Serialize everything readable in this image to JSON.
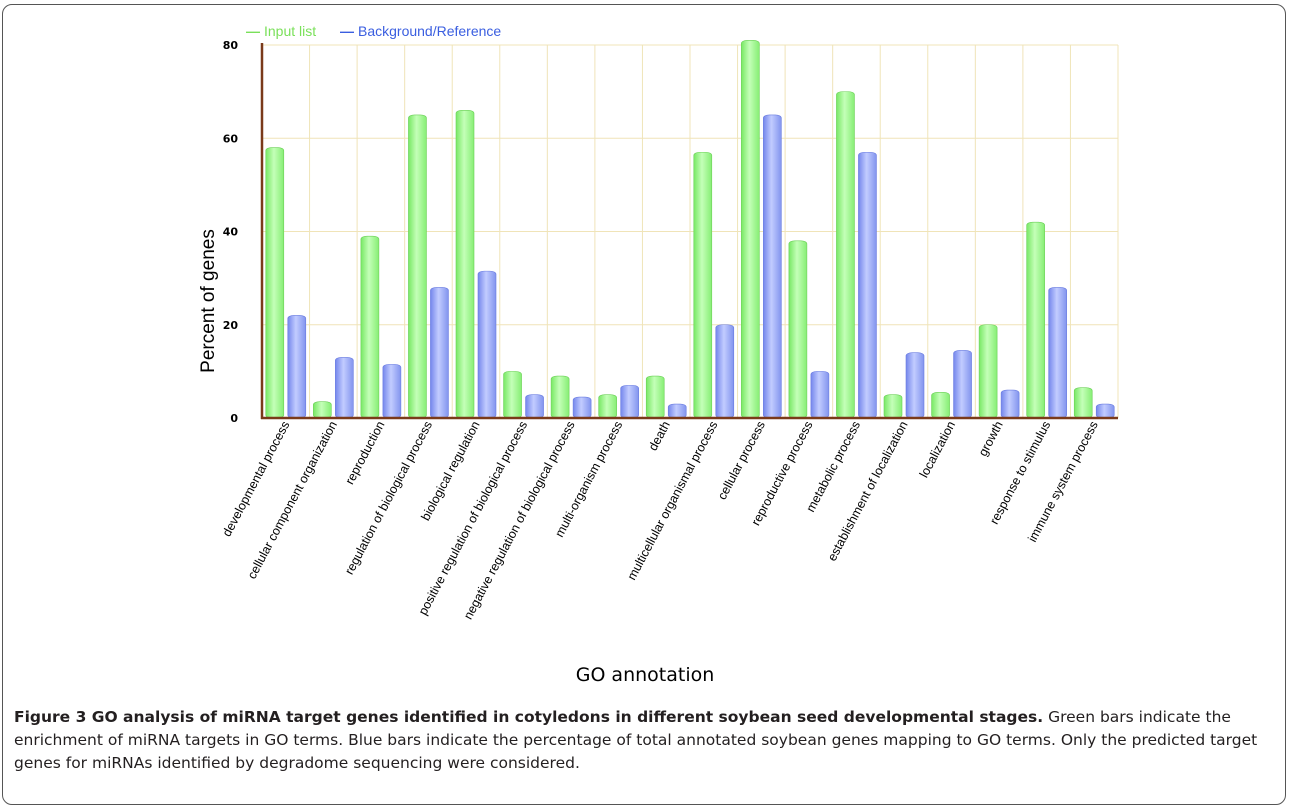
{
  "chart_data": {
    "type": "bar",
    "title": "",
    "xlabel": "GO annotation",
    "ylabel": "Percent of genes",
    "ylim": [
      0,
      80
    ],
    "yticks": [
      0,
      20,
      40,
      60,
      80
    ],
    "grid": true,
    "legend_position": "top-left",
    "categories": [
      "developmental process",
      "cellular component organization",
      "reproduction",
      "regulation of biological process",
      "biological regulation",
      "positive regulation of biological process",
      "negative regulation of biological process",
      "multi-organism process",
      "death",
      "multicellular organismal process",
      "cellular process",
      "reproductive process",
      "metabolic process",
      "establishment of localization",
      "localization",
      "growth",
      "response to stimulus",
      "immune system process"
    ],
    "series": [
      {
        "name": "Input list",
        "color": "#90f080",
        "values": [
          58,
          3.5,
          39,
          65,
          66,
          10,
          9,
          5,
          9,
          57,
          81,
          38,
          70,
          5,
          5.5,
          20,
          42,
          6.5
        ]
      },
      {
        "name": "Background/Reference",
        "color": "#8c9cf0",
        "values": [
          22,
          13,
          11.5,
          28,
          31.5,
          5,
          4.5,
          7,
          3,
          20,
          65,
          10,
          57,
          14,
          14.5,
          6,
          28,
          3
        ]
      }
    ],
    "legend_marker": "—"
  },
  "caption": {
    "label": "Figure 3 GO analysis of miRNA target genes identified in cotyledons in different soybean seed developmental stages.",
    "text": " Green bars indicate the enrichment of miRNA targets in GO terms. Blue bars indicate the percentage of total annotated soybean genes mapping to GO terms. Only the predicted target genes for miRNAs identified by degradome sequencing were considered."
  },
  "colors": {
    "grid": "#f0e4b8",
    "axis": "#7a3a1a",
    "legend_green": "#7ae05a",
    "legend_blue": "#3a5ee0"
  }
}
